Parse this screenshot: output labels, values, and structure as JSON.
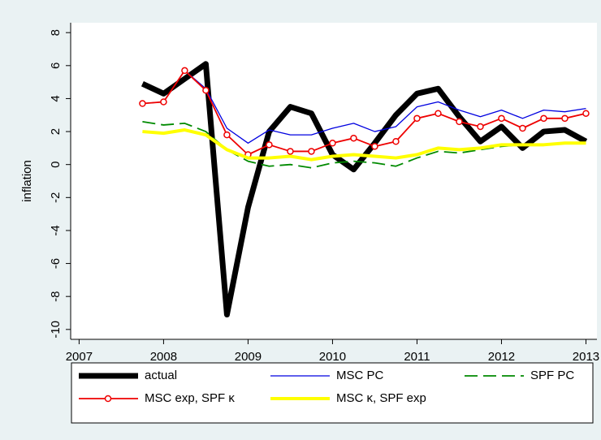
{
  "chart_data": {
    "type": "line",
    "y_label": "inflation",
    "x": [
      2007.75,
      2008,
      2008.25,
      2008.5,
      2008.75,
      2009,
      2009.25,
      2009.5,
      2009.75,
      2010,
      2010.25,
      2010.5,
      2010.75,
      2011,
      2011.25,
      2011.5,
      2011.75,
      2012,
      2012.25,
      2012.5,
      2012.75,
      2013
    ],
    "series": [
      {
        "name": "actual",
        "color": "#000000",
        "linewidth": 7,
        "values": [
          4.9,
          4.3,
          5.2,
          6.1,
          -9.1,
          -2.6,
          2.0,
          3.5,
          3.1,
          0.6,
          -0.3,
          1.3,
          3.0,
          4.3,
          4.6,
          2.9,
          1.4,
          2.3,
          1.0,
          2.0,
          2.1,
          1.4
        ]
      },
      {
        "name": "MSC PC",
        "color": "#0000e0",
        "linewidth": 1.3,
        "values": [
          3.7,
          3.8,
          5.7,
          4.6,
          2.2,
          1.3,
          2.1,
          1.8,
          1.8,
          2.2,
          2.5,
          2.0,
          2.3,
          3.5,
          3.8,
          3.3,
          2.9,
          3.3,
          2.8,
          3.3,
          3.2,
          3.4
        ]
      },
      {
        "name": "SPF PC",
        "color": "#008a00",
        "linewidth": 1.8,
        "dashed": true,
        "values": [
          2.6,
          2.4,
          2.5,
          2.0,
          0.9,
          0.2,
          -0.1,
          0.0,
          -0.2,
          0.1,
          0.2,
          0.1,
          -0.1,
          0.4,
          0.8,
          0.7,
          0.9,
          1.1,
          1.2,
          1.2,
          1.3,
          1.3
        ]
      },
      {
        "name": "MSC exp, SPF κ",
        "color": "#ee0000",
        "linewidth": 1.8,
        "marker": "circle",
        "values": [
          3.7,
          3.8,
          5.7,
          4.5,
          1.8,
          0.6,
          1.2,
          0.8,
          0.8,
          1.3,
          1.6,
          1.1,
          1.4,
          2.8,
          3.1,
          2.6,
          2.3,
          2.8,
          2.2,
          2.8,
          2.8,
          3.1
        ]
      },
      {
        "name": "MSC κ, SPF exp",
        "color": "#ffff00",
        "linewidth": 4,
        "values": [
          2.0,
          1.9,
          2.1,
          1.8,
          0.9,
          0.4,
          0.4,
          0.5,
          0.3,
          0.5,
          0.6,
          0.5,
          0.4,
          0.6,
          1.0,
          0.9,
          1.0,
          1.2,
          1.2,
          1.2,
          1.3,
          1.3
        ]
      }
    ],
    "xlim": [
      2006.9,
      2013.13
    ],
    "ylim": [
      -10.6,
      8.6
    ],
    "xticks": [
      2007,
      2008,
      2009,
      2010,
      2011,
      2012,
      2013
    ],
    "yticks": [
      -10,
      -8,
      -6,
      -4,
      -2,
      0,
      2,
      4,
      6,
      8
    ],
    "legend": "bottom"
  }
}
